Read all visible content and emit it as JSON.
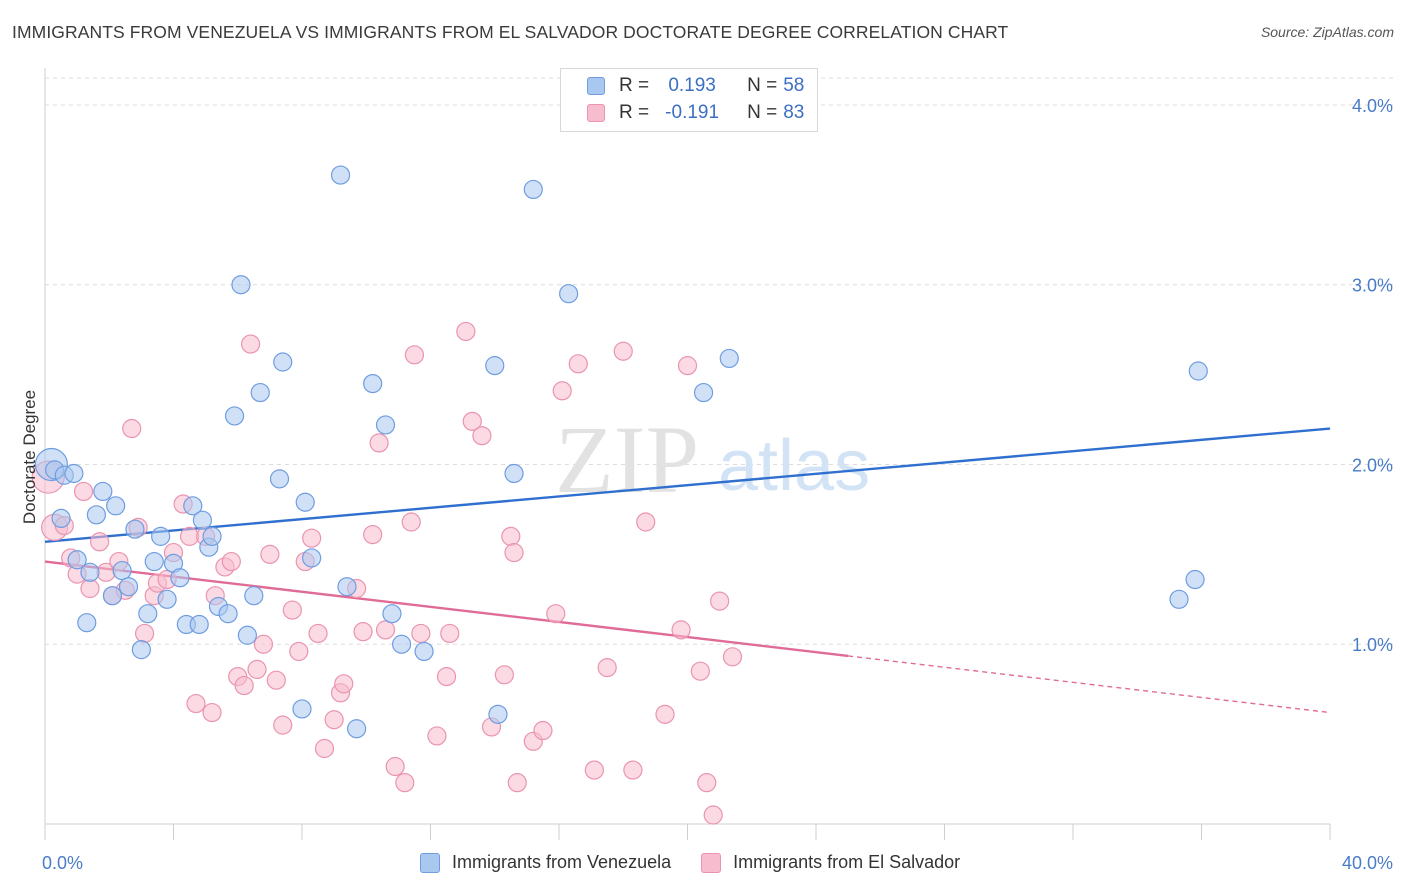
{
  "title": "IMMIGRANTS FROM VENEZUELA VS IMMIGRANTS FROM EL SALVADOR DOCTORATE DEGREE CORRELATION CHART",
  "source": "Source: ZipAtlas.com",
  "watermark": {
    "zip": "ZIP",
    "atlas": "atlas"
  },
  "legend": {
    "r_label": "R =",
    "n_label": "N =",
    "series1": {
      "r": "0.193",
      "n": "58"
    },
    "series2": {
      "r": "-0.191",
      "n": "83"
    }
  },
  "bottom_legend": {
    "series1": "Immigrants from Venezuela",
    "series2": "Immigrants from El Salvador"
  },
  "colors": {
    "blue_fill": "#a9c8f0",
    "blue_stroke": "#6f9de0",
    "blue_line": "#2f6fcf",
    "pink_fill": "#f7bccd",
    "pink_stroke": "#ea94b0",
    "pink_line": "#e06b97",
    "tick_text": "#4a7cc7",
    "grid": "#dcdcdc"
  },
  "chart_data": {
    "type": "scatter",
    "title": "IMMIGRANTS FROM VENEZUELA VS IMMIGRANTS FROM EL SALVADOR DOCTORATE DEGREE CORRELATION CHART",
    "xlabel": "",
    "ylabel": "Doctorate Degree",
    "xlim": [
      0,
      40
    ],
    "ylim": [
      0,
      4.15
    ],
    "x_tick_labels": [
      "0.0%",
      "40.0%"
    ],
    "y_ticks": [
      1.0,
      2.0,
      3.0,
      4.0
    ],
    "y_tick_labels": [
      "1.0%",
      "2.0%",
      "3.0%",
      "4.0%"
    ],
    "grid": true,
    "series": [
      {
        "name": "Immigrants from Venezuela",
        "r": 0.193,
        "n": 58,
        "trend": {
          "x": [
            0,
            40
          ],
          "y": [
            1.57,
            2.2
          ],
          "solid_to": 40
        },
        "points": [
          [
            0.2,
            2.0,
            16
          ],
          [
            0.3,
            1.97,
            9
          ],
          [
            0.6,
            1.94,
            9
          ],
          [
            0.9,
            1.95,
            9
          ],
          [
            0.5,
            1.7,
            9
          ],
          [
            1.0,
            1.47,
            9
          ],
          [
            1.4,
            1.4,
            9
          ],
          [
            1.6,
            1.72,
            9
          ],
          [
            1.8,
            1.85,
            9
          ],
          [
            2.2,
            1.77,
            9
          ],
          [
            2.1,
            1.27,
            9
          ],
          [
            2.4,
            1.41,
            9
          ],
          [
            2.6,
            1.32,
            9
          ],
          [
            2.8,
            1.64,
            9
          ],
          [
            1.3,
            1.12,
            9
          ],
          [
            3.0,
            0.97,
            9
          ],
          [
            3.2,
            1.17,
            9
          ],
          [
            3.4,
            1.46,
            9
          ],
          [
            3.6,
            1.6,
            9
          ],
          [
            3.8,
            1.25,
            9
          ],
          [
            4.0,
            1.45,
            9
          ],
          [
            4.2,
            1.37,
            9
          ],
          [
            4.4,
            1.11,
            9
          ],
          [
            4.6,
            1.77,
            9
          ],
          [
            4.8,
            1.11,
            9
          ],
          [
            4.9,
            1.69,
            9
          ],
          [
            5.1,
            1.54,
            9
          ],
          [
            5.2,
            1.6,
            9
          ],
          [
            5.4,
            1.21,
            9
          ],
          [
            5.7,
            1.17,
            9
          ],
          [
            5.9,
            2.27,
            9
          ],
          [
            6.1,
            3.0,
            9
          ],
          [
            6.3,
            1.05,
            9
          ],
          [
            6.5,
            1.27,
            9
          ],
          [
            6.7,
            2.4,
            9
          ],
          [
            7.3,
            1.92,
            9
          ],
          [
            7.4,
            2.57,
            9
          ],
          [
            8.0,
            0.64,
            9
          ],
          [
            8.1,
            1.79,
            9
          ],
          [
            8.3,
            1.48,
            9
          ],
          [
            9.2,
            3.61,
            9
          ],
          [
            9.4,
            1.32,
            9
          ],
          [
            9.7,
            0.53,
            9
          ],
          [
            10.2,
            2.45,
            9
          ],
          [
            10.6,
            2.22,
            9
          ],
          [
            10.8,
            1.17,
            9
          ],
          [
            11.1,
            1.0,
            9
          ],
          [
            11.8,
            0.96,
            9
          ],
          [
            14.1,
            0.61,
            9
          ],
          [
            14.0,
            2.55,
            9
          ],
          [
            14.6,
            1.95,
            9
          ],
          [
            15.2,
            3.53,
            9
          ],
          [
            16.3,
            2.95,
            9
          ],
          [
            20.5,
            2.4,
            9
          ],
          [
            21.3,
            2.59,
            9
          ],
          [
            35.9,
            2.52,
            9
          ],
          [
            35.3,
            1.25,
            9
          ],
          [
            35.8,
            1.36,
            9
          ]
        ]
      },
      {
        "name": "Immigrants from El Salvador",
        "r": -0.191,
        "n": 83,
        "trend": {
          "x": [
            0,
            40
          ],
          "y": [
            1.46,
            0.62
          ],
          "solid_to": 25.0
        },
        "points": [
          [
            0.1,
            1.93,
            16
          ],
          [
            0.3,
            1.65,
            13
          ],
          [
            0.6,
            1.66,
            9
          ],
          [
            0.8,
            1.48,
            9
          ],
          [
            1.0,
            1.39,
            9
          ],
          [
            1.2,
            1.85,
            9
          ],
          [
            1.4,
            1.31,
            9
          ],
          [
            1.7,
            1.57,
            9
          ],
          [
            1.9,
            1.4,
            9
          ],
          [
            2.1,
            1.27,
            9
          ],
          [
            2.3,
            1.46,
            9
          ],
          [
            2.5,
            1.3,
            9
          ],
          [
            2.7,
            2.2,
            9
          ],
          [
            2.9,
            1.65,
            9
          ],
          [
            3.1,
            1.06,
            9
          ],
          [
            3.4,
            1.27,
            9
          ],
          [
            3.5,
            1.34,
            9
          ],
          [
            3.8,
            1.36,
            9
          ],
          [
            4.0,
            1.51,
            9
          ],
          [
            4.3,
            1.78,
            9
          ],
          [
            4.5,
            1.6,
            9
          ],
          [
            4.7,
            0.67,
            9
          ],
          [
            5.0,
            1.6,
            9
          ],
          [
            5.2,
            0.62,
            9
          ],
          [
            5.3,
            1.27,
            9
          ],
          [
            5.6,
            1.43,
            9
          ],
          [
            5.8,
            1.46,
            9
          ],
          [
            6.0,
            0.82,
            9
          ],
          [
            6.2,
            0.77,
            9
          ],
          [
            6.4,
            2.67,
            9
          ],
          [
            6.6,
            0.86,
            9
          ],
          [
            6.8,
            1.0,
            9
          ],
          [
            7.0,
            1.5,
            9
          ],
          [
            7.2,
            0.8,
            9
          ],
          [
            7.4,
            0.55,
            9
          ],
          [
            7.7,
            1.19,
            9
          ],
          [
            7.9,
            0.96,
            9
          ],
          [
            8.1,
            1.46,
            9
          ],
          [
            8.3,
            1.59,
            9
          ],
          [
            8.5,
            1.06,
            9
          ],
          [
            8.7,
            0.42,
            9
          ],
          [
            9.0,
            0.58,
            9
          ],
          [
            9.2,
            0.73,
            9
          ],
          [
            9.3,
            0.78,
            9
          ],
          [
            9.7,
            1.31,
            9
          ],
          [
            9.9,
            1.07,
            9
          ],
          [
            10.2,
            1.61,
            9
          ],
          [
            10.4,
            2.12,
            9
          ],
          [
            10.6,
            1.08,
            9
          ],
          [
            10.9,
            0.32,
            9
          ],
          [
            11.2,
            0.23,
            9
          ],
          [
            11.4,
            1.68,
            9
          ],
          [
            11.5,
            2.61,
            9
          ],
          [
            11.7,
            1.06,
            9
          ],
          [
            12.2,
            0.49,
            9
          ],
          [
            12.5,
            0.82,
            9
          ],
          [
            12.6,
            1.06,
            9
          ],
          [
            13.1,
            2.74,
            9
          ],
          [
            13.3,
            2.24,
            9
          ],
          [
            13.6,
            2.16,
            9
          ],
          [
            13.9,
            0.54,
            9
          ],
          [
            14.3,
            0.83,
            9
          ],
          [
            14.5,
            1.6,
            9
          ],
          [
            14.6,
            1.51,
            9
          ],
          [
            14.7,
            0.23,
            9
          ],
          [
            15.2,
            0.46,
            9
          ],
          [
            15.5,
            0.52,
            9
          ],
          [
            15.9,
            1.17,
            9
          ],
          [
            16.1,
            2.41,
            9
          ],
          [
            16.6,
            2.56,
            9
          ],
          [
            17.1,
            0.3,
            9
          ],
          [
            17.5,
            0.87,
            9
          ],
          [
            18.0,
            2.63,
            9
          ],
          [
            18.3,
            0.3,
            9
          ],
          [
            18.7,
            1.68,
            9
          ],
          [
            19.3,
            0.61,
            9
          ],
          [
            19.8,
            1.08,
            9
          ],
          [
            20.0,
            2.55,
            9
          ],
          [
            20.4,
            0.85,
            9
          ],
          [
            20.6,
            0.23,
            9
          ],
          [
            20.8,
            0.05,
            9
          ],
          [
            21.0,
            1.24,
            9
          ],
          [
            21.4,
            0.93,
            9
          ]
        ]
      }
    ]
  }
}
